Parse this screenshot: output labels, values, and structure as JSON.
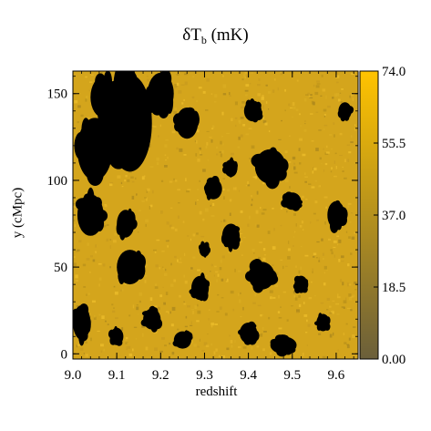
{
  "chart_data": {
    "type": "heatmap",
    "title": {
      "main": "δT",
      "subscript": "b",
      "unit": " (mK)"
    },
    "xlabel": "redshift",
    "ylabel": "y (cMpc)",
    "xlim": [
      9.0,
      9.65
    ],
    "ylim": [
      -3,
      163
    ],
    "x_ticks": [
      "9.0",
      "9.1",
      "9.2",
      "9.3",
      "9.4",
      "9.5",
      "9.6"
    ],
    "y_ticks": [
      "0",
      "50",
      "100",
      "150"
    ],
    "colorbar": {
      "min": 0.0,
      "max": 74.0,
      "ticks": [
        "0.00",
        "18.5",
        "37.0",
        "55.5",
        "74.0"
      ],
      "color_low": "#6b5f3a",
      "color_high": "#ffc300"
    },
    "field_color": "#d4a51c",
    "ionized_color": "#000000",
    "ionized_regions": [
      {
        "z": 9.13,
        "y": 133,
        "rz": 0.05,
        "ry": 28
      },
      {
        "z": 9.05,
        "y": 118,
        "rz": 0.04,
        "ry": 18
      },
      {
        "z": 9.2,
        "y": 150,
        "rz": 0.03,
        "ry": 12
      },
      {
        "z": 9.26,
        "y": 133,
        "rz": 0.025,
        "ry": 9
      },
      {
        "z": 9.45,
        "y": 108,
        "rz": 0.035,
        "ry": 10
      },
      {
        "z": 9.36,
        "y": 107,
        "rz": 0.015,
        "ry": 5
      },
      {
        "z": 9.32,
        "y": 95,
        "rz": 0.02,
        "ry": 6
      },
      {
        "z": 9.04,
        "y": 80,
        "rz": 0.03,
        "ry": 12
      },
      {
        "z": 9.12,
        "y": 75,
        "rz": 0.02,
        "ry": 8
      },
      {
        "z": 9.13,
        "y": 50,
        "rz": 0.03,
        "ry": 10
      },
      {
        "z": 9.29,
        "y": 38,
        "rz": 0.02,
        "ry": 7
      },
      {
        "z": 9.43,
        "y": 45,
        "rz": 0.03,
        "ry": 8
      },
      {
        "z": 9.52,
        "y": 40,
        "rz": 0.015,
        "ry": 5
      },
      {
        "z": 9.36,
        "y": 68,
        "rz": 0.02,
        "ry": 7
      },
      {
        "z": 9.5,
        "y": 88,
        "rz": 0.02,
        "ry": 5
      },
      {
        "z": 9.6,
        "y": 80,
        "rz": 0.02,
        "ry": 8
      },
      {
        "z": 9.62,
        "y": 140,
        "rz": 0.015,
        "ry": 5
      },
      {
        "z": 9.41,
        "y": 140,
        "rz": 0.02,
        "ry": 6
      },
      {
        "z": 9.02,
        "y": 18,
        "rz": 0.02,
        "ry": 10
      },
      {
        "z": 9.1,
        "y": 10,
        "rz": 0.015,
        "ry": 5
      },
      {
        "z": 9.18,
        "y": 20,
        "rz": 0.02,
        "ry": 6
      },
      {
        "z": 9.25,
        "y": 8,
        "rz": 0.02,
        "ry": 5
      },
      {
        "z": 9.4,
        "y": 12,
        "rz": 0.02,
        "ry": 6
      },
      {
        "z": 9.48,
        "y": 5,
        "rz": 0.03,
        "ry": 5
      },
      {
        "z": 9.57,
        "y": 18,
        "rz": 0.015,
        "ry": 5
      },
      {
        "z": 9.3,
        "y": 60,
        "rz": 0.012,
        "ry": 4
      },
      {
        "z": 9.07,
        "y": 148,
        "rz": 0.03,
        "ry": 12
      }
    ]
  }
}
